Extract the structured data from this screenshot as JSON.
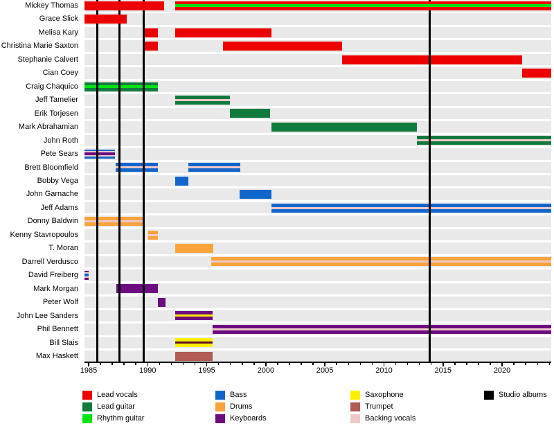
{
  "chart_data": {
    "type": "timeline",
    "description_visible_text_only": true,
    "axis": {
      "start": 1984.65,
      "end": 2024.2,
      "tick_first": 1985,
      "tick_last": 2024,
      "major_tick_interval": 5,
      "major_tick_labels": [
        "1985",
        "1990",
        "1995",
        "2000",
        "2005",
        "2010",
        "2015",
        "2020"
      ]
    },
    "palette": {
      "lead_vocals": "#ec0000",
      "lead_guitar": "#117b3d",
      "rhythm_guitar": "#00e410",
      "bass": "#1166cb",
      "drums": "#f8a33b",
      "keyboards": "#6d0b80",
      "saxophone": "#fcf000",
      "trumpet": "#b05c55",
      "backing_vocals": "#f0c8c8",
      "studio_albums": "#000000",
      "dark_red": "#5c0e24",
      "row_band": "#e9e9e9"
    },
    "album_lines": [
      1985.73,
      1987.6,
      1989.66,
      2013.87
    ],
    "members": [
      {
        "name": "Mickey Thomas",
        "above_album_lines": true,
        "bars": [
          {
            "from": 1984.65,
            "to": 1991.4,
            "instrument": "lead_vocals"
          },
          {
            "from": 1992.3,
            "to": 2024.15,
            "instrument": "lead_vocals",
            "stripes": [
              "rhythm_guitar"
            ]
          }
        ]
      },
      {
        "name": "Grace Slick",
        "above_album_lines": true,
        "bars": [
          {
            "from": 1984.65,
            "to": 1988.2,
            "instrument": "lead_vocals"
          }
        ]
      },
      {
        "name": "Melisa Kary",
        "bars": [
          {
            "from": 1989.75,
            "to": 1990.85,
            "instrument": "lead_vocals"
          },
          {
            "from": 1992.3,
            "to": 2000.5,
            "instrument": "lead_vocals"
          }
        ]
      },
      {
        "name": "Christina Marie Saxton",
        "bars": [
          {
            "from": 1989.75,
            "to": 1990.85,
            "instrument": "lead_vocals"
          },
          {
            "from": 1996.4,
            "to": 2006.45,
            "instrument": "lead_vocals"
          }
        ]
      },
      {
        "name": "Stephanie Calvert",
        "bars": [
          {
            "from": 2006.45,
            "to": 2021.7,
            "instrument": "lead_vocals"
          }
        ]
      },
      {
        "name": "Cian Coey",
        "bars": [
          {
            "from": 2021.7,
            "to": 2024.15,
            "instrument": "lead_vocals"
          }
        ]
      },
      {
        "name": "Craig Chaquico",
        "bars": [
          {
            "from": 1984.65,
            "to": 1990.85,
            "instrument": "lead_guitar",
            "stripes": [
              "rhythm_guitar"
            ]
          }
        ]
      },
      {
        "name": "Jeff Tamelier",
        "bars": [
          {
            "from": 1992.3,
            "to": 1996.95,
            "instrument": "lead_guitar",
            "stripes": [
              "backing_vocals"
            ]
          }
        ]
      },
      {
        "name": "Erik Torjesen",
        "bars": [
          {
            "from": 1996.95,
            "to": 2000.35,
            "instrument": "lead_guitar"
          }
        ]
      },
      {
        "name": "Mark Abrahamian",
        "bars": [
          {
            "from": 2000.5,
            "to": 2012.8,
            "instrument": "lead_guitar"
          }
        ]
      },
      {
        "name": "John Roth",
        "bars": [
          {
            "from": 2012.8,
            "to": 2024.15,
            "instrument": "lead_guitar",
            "stripes": [
              "backing_vocals"
            ]
          }
        ]
      },
      {
        "name": "Pete Sears",
        "bars": [
          {
            "from": 1984.65,
            "to": 1987.2,
            "instrument": "bass",
            "stripes": [
              "backing_vocals",
              "keyboards",
              "backing_vocals"
            ]
          }
        ]
      },
      {
        "name": "Brett Bloomfield",
        "bars": [
          {
            "from": 1987.3,
            "to": 1990.85,
            "instrument": "bass",
            "stripes": [
              "backing_vocals"
            ]
          },
          {
            "from": 1993.45,
            "to": 1997.85,
            "instrument": "bass",
            "stripes": [
              "backing_vocals"
            ]
          }
        ]
      },
      {
        "name": "Bobby Vega",
        "bars": [
          {
            "from": 1992.3,
            "to": 1993.45,
            "instrument": "bass"
          }
        ]
      },
      {
        "name": "John Garnache",
        "bars": [
          {
            "from": 1997.8,
            "to": 2000.5,
            "instrument": "bass"
          }
        ]
      },
      {
        "name": "Jeff Adams",
        "bars": [
          {
            "from": 2000.5,
            "to": 2024.15,
            "instrument": "bass",
            "stripes": [
              "backing_vocals"
            ]
          }
        ]
      },
      {
        "name": "Donny Baldwin",
        "bars": [
          {
            "from": 1984.65,
            "to": 1989.75,
            "instrument": "drums",
            "stripes": [
              "backing_vocals"
            ]
          }
        ]
      },
      {
        "name": "Kenny Stavropoulos",
        "bars": [
          {
            "from": 1990.05,
            "to": 1990.85,
            "instrument": "drums",
            "stripes": [
              "backing_vocals"
            ]
          }
        ]
      },
      {
        "name": "T. Moran",
        "bars": [
          {
            "from": 1992.3,
            "to": 1995.55,
            "instrument": "drums"
          }
        ]
      },
      {
        "name": "Darrell Verdusco",
        "bars": [
          {
            "from": 1995.4,
            "to": 2024.15,
            "instrument": "drums",
            "stripes": [
              "backing_vocals"
            ]
          }
        ]
      },
      {
        "name": "David Freiberg",
        "bars": [
          {
            "from": 1984.65,
            "to": 1985.0,
            "instrument": "keyboards",
            "stripes": [
              "backing_vocals",
              "bass",
              "backing_vocals"
            ]
          }
        ]
      },
      {
        "name": "Mark Morgan",
        "bars": [
          {
            "from": 1987.35,
            "to": 1990.85,
            "instrument": "keyboards"
          }
        ]
      },
      {
        "name": "Peter Wolf",
        "bars": [
          {
            "from": 1990.85,
            "to": 1991.5,
            "instrument": "keyboards"
          }
        ]
      },
      {
        "name": "John Lee Sanders",
        "bars": [
          {
            "from": 1992.3,
            "to": 1995.5,
            "instrument": "keyboards",
            "stripes": [
              "saxophone"
            ]
          }
        ]
      },
      {
        "name": "Phil Bennett",
        "bars": [
          {
            "from": 1995.5,
            "to": 2024.15,
            "instrument": "keyboards",
            "stripes": [
              "backing_vocals"
            ]
          }
        ]
      },
      {
        "name": "Bill Slais",
        "bars": [
          {
            "from": 1992.3,
            "to": 1995.5,
            "instrument": "saxophone",
            "stripes": [
              "dark_red"
            ]
          }
        ]
      },
      {
        "name": "Max Haskett",
        "bars": [
          {
            "from": 1992.3,
            "to": 1995.5,
            "instrument": "trumpet"
          }
        ]
      }
    ],
    "legend": {
      "columns": [
        {
          "items": [
            {
              "label": "Lead vocals",
              "color": "lead_vocals"
            },
            {
              "label": "Lead guitar",
              "color": "lead_guitar"
            },
            {
              "label": "Rhythm guitar",
              "color": "rhythm_guitar"
            }
          ]
        },
        {
          "items": [
            {
              "label": "Bass",
              "color": "bass"
            },
            {
              "label": "Drums",
              "color": "drums"
            },
            {
              "label": "Keyboards",
              "color": "keyboards"
            }
          ]
        },
        {
          "items": [
            {
              "label": "Saxophone",
              "color": "saxophone"
            },
            {
              "label": "Trumpet",
              "color": "trumpet"
            },
            {
              "label": "Backing vocals",
              "color": "backing_vocals"
            }
          ]
        },
        {
          "items": [
            {
              "label": "Studio albums",
              "color": "studio_albums"
            }
          ]
        }
      ]
    }
  }
}
